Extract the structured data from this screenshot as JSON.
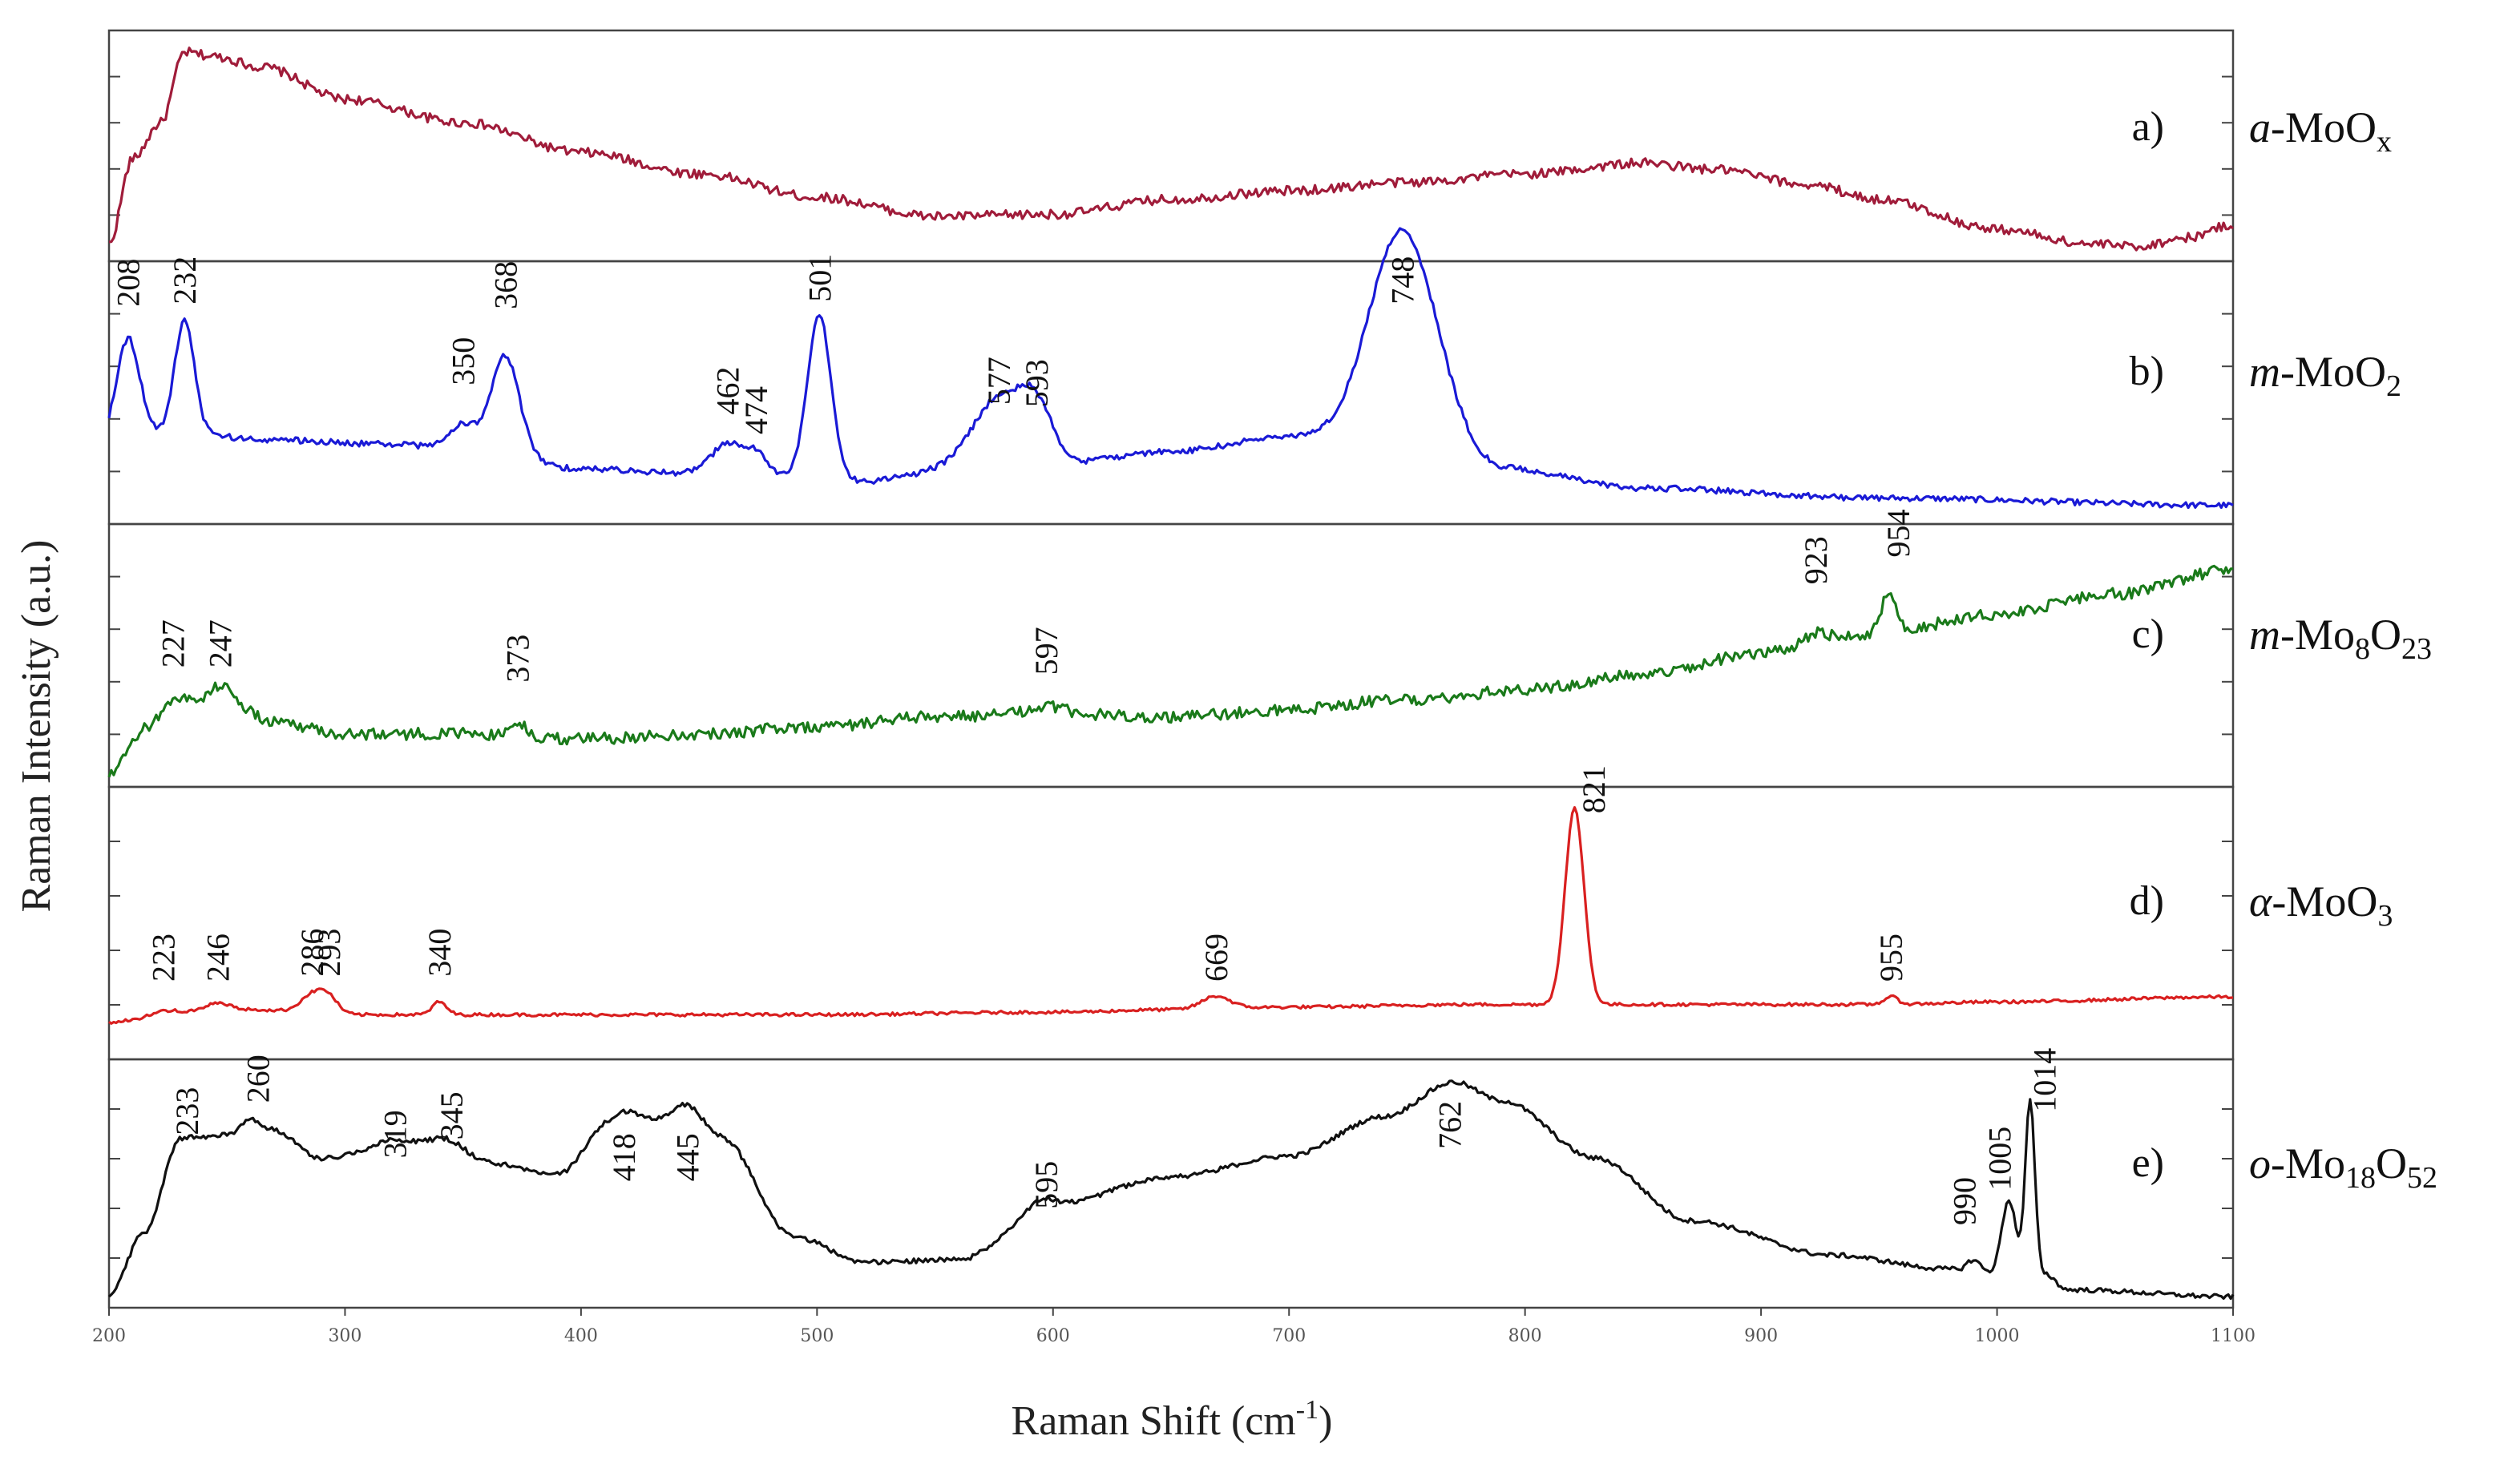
{
  "chart_data": {
    "type": "line",
    "xlabel": "Raman Shift (cm",
    "xlabel_sup": "-1",
    "xlabel_close": ")",
    "ylabel": "Raman Intensity  (a.u.)",
    "xlim": [
      200,
      1100
    ],
    "xticks": [
      200,
      300,
      400,
      500,
      600,
      700,
      800,
      900,
      1000,
      1100
    ],
    "series": [
      {
        "id": "a",
        "letter": "a)",
        "name_parts": [
          {
            "t": "a",
            "i": true
          },
          {
            "t": "-MoO"
          },
          {
            "t": "x",
            "sub": true
          }
        ],
        "color": "#a01c3a",
        "noise": 0.022,
        "base": [
          [
            200,
            0.05
          ],
          [
            210,
            0.45
          ],
          [
            222,
            0.62
          ],
          [
            232,
            0.95
          ],
          [
            245,
            0.93
          ],
          [
            265,
            0.88
          ],
          [
            300,
            0.73
          ],
          [
            350,
            0.62
          ],
          [
            400,
            0.48
          ],
          [
            450,
            0.38
          ],
          [
            500,
            0.27
          ],
          [
            550,
            0.18
          ],
          [
            600,
            0.19
          ],
          [
            650,
            0.26
          ],
          [
            700,
            0.3
          ],
          [
            750,
            0.34
          ],
          [
            800,
            0.38
          ],
          [
            850,
            0.43
          ],
          [
            880,
            0.4
          ],
          [
            920,
            0.33
          ],
          [
            950,
            0.26
          ],
          [
            1000,
            0.12
          ],
          [
            1040,
            0.05
          ],
          [
            1060,
            0.04
          ],
          [
            1080,
            0.08
          ],
          [
            1100,
            0.14
          ]
        ],
        "peaks": [],
        "labels": []
      },
      {
        "id": "b",
        "letter": "b)",
        "name_parts": [
          {
            "t": "m",
            "i": true
          },
          {
            "t": "-MoO"
          },
          {
            "t": "2",
            "sub": true
          }
        ],
        "color": "#1a1ad6",
        "noise": 0.012,
        "base": [
          [
            200,
            0.3
          ],
          [
            230,
            0.36
          ],
          [
            260,
            0.32
          ],
          [
            320,
            0.3
          ],
          [
            350,
            0.28
          ],
          [
            400,
            0.2
          ],
          [
            450,
            0.18
          ],
          [
            480,
            0.17
          ],
          [
            520,
            0.15
          ],
          [
            560,
            0.2
          ],
          [
            600,
            0.22
          ],
          [
            650,
            0.27
          ],
          [
            700,
            0.33
          ],
          [
            760,
            0.3
          ],
          [
            790,
            0.2
          ],
          [
            850,
            0.12
          ],
          [
            950,
            0.08
          ],
          [
            1100,
            0.05
          ]
        ],
        "peaks": [
          [
            208,
            0.42,
            5
          ],
          [
            232,
            0.45,
            4
          ],
          [
            350,
            0.1,
            6
          ],
          [
            368,
            0.4,
            6
          ],
          [
            462,
            0.12,
            7
          ],
          [
            474,
            0.08,
            5
          ],
          [
            501,
            0.66,
            5
          ],
          [
            577,
            0.28,
            11
          ],
          [
            593,
            0.2,
            7
          ],
          [
            748,
            0.87,
            14
          ]
        ],
        "labels": [
          {
            "text": "208",
            "x": 208,
            "y": 0.86
          },
          {
            "text": "232",
            "x": 232,
            "y": 0.87
          },
          {
            "text": "350",
            "x": 350,
            "y": 0.54
          },
          {
            "text": "368",
            "x": 368,
            "y": 0.85
          },
          {
            "text": "462",
            "x": 462,
            "y": 0.42
          },
          {
            "text": "474",
            "x": 474,
            "y": 0.34
          },
          {
            "text": "501",
            "x": 501,
            "y": 0.88
          },
          {
            "text": "577",
            "x": 577,
            "y": 0.46
          },
          {
            "text": "593",
            "x": 593,
            "y": 0.45
          },
          {
            "text": "748",
            "x": 748,
            "y": 0.87
          }
        ]
      },
      {
        "id": "c",
        "letter": "c)",
        "name_parts": [
          {
            "t": "m",
            "i": true
          },
          {
            "t": "-Mo"
          },
          {
            "t": "8",
            "sub": true
          },
          {
            "t": "O"
          },
          {
            "t": "23",
            "sub": true
          }
        ],
        "color": "#1a7a1a",
        "noise": 0.024,
        "base": [
          [
            200,
            0.02
          ],
          [
            215,
            0.2
          ],
          [
            235,
            0.28
          ],
          [
            250,
            0.3
          ],
          [
            270,
            0.24
          ],
          [
            300,
            0.19
          ],
          [
            350,
            0.19
          ],
          [
            400,
            0.17
          ],
          [
            450,
            0.19
          ],
          [
            500,
            0.22
          ],
          [
            550,
            0.26
          ],
          [
            600,
            0.27
          ],
          [
            650,
            0.26
          ],
          [
            700,
            0.29
          ],
          [
            750,
            0.33
          ],
          [
            800,
            0.37
          ],
          [
            850,
            0.43
          ],
          [
            900,
            0.52
          ],
          [
            950,
            0.6
          ],
          [
            1000,
            0.68
          ],
          [
            1050,
            0.76
          ],
          [
            1100,
            0.86
          ]
        ],
        "peaks": [
          [
            227,
            0.08,
            6
          ],
          [
            247,
            0.09,
            6
          ],
          [
            373,
            0.06,
            3
          ],
          [
            597,
            0.03,
            8
          ],
          [
            923,
            0.05,
            5
          ],
          [
            954,
            0.16,
            3
          ]
        ],
        "labels": [
          {
            "text": "227",
            "x": 227,
            "y": 0.46
          },
          {
            "text": "247",
            "x": 247,
            "y": 0.46
          },
          {
            "text": "373",
            "x": 373,
            "y": 0.4
          },
          {
            "text": "597",
            "x": 597,
            "y": 0.43
          },
          {
            "text": "923",
            "x": 923,
            "y": 0.8
          },
          {
            "text": "954",
            "x": 958,
            "y": 0.91
          }
        ]
      },
      {
        "id": "d",
        "letter": "d)",
        "name_parts": [
          {
            "t": "α",
            "i": true
          },
          {
            "t": "-MoO"
          },
          {
            "t": "3",
            "sub": true
          }
        ],
        "color": "#d92020",
        "noise": 0.006,
        "base": [
          [
            200,
            0.12
          ],
          [
            230,
            0.16
          ],
          [
            260,
            0.17
          ],
          [
            300,
            0.15
          ],
          [
            400,
            0.15
          ],
          [
            500,
            0.15
          ],
          [
            600,
            0.16
          ],
          [
            650,
            0.17
          ],
          [
            700,
            0.18
          ],
          [
            780,
            0.19
          ],
          [
            800,
            0.19
          ],
          [
            850,
            0.19
          ],
          [
            900,
            0.19
          ],
          [
            950,
            0.19
          ],
          [
            1000,
            0.2
          ],
          [
            1100,
            0.22
          ]
        ],
        "peaks": [
          [
            223,
            0.01,
            5
          ],
          [
            246,
            0.03,
            5
          ],
          [
            286,
            0.07,
            5
          ],
          [
            293,
            0.06,
            4
          ],
          [
            340,
            0.05,
            3
          ],
          [
            669,
            0.05,
            6
          ],
          [
            821,
            0.77,
            4
          ],
          [
            955,
            0.03,
            3
          ]
        ],
        "labels": [
          {
            "text": "223",
            "x": 223,
            "y": 0.28
          },
          {
            "text": "246",
            "x": 246,
            "y": 0.28
          },
          {
            "text": "286",
            "x": 286,
            "y": 0.3
          },
          {
            "text": "293",
            "x": 293,
            "y": 0.3
          },
          {
            "text": "340",
            "x": 340,
            "y": 0.3
          },
          {
            "text": "669",
            "x": 669,
            "y": 0.28
          },
          {
            "text": "821",
            "x": 829,
            "y": 0.94
          },
          {
            "text": "955",
            "x": 955,
            "y": 0.28
          }
        ]
      },
      {
        "id": "e",
        "letter": "e)",
        "name_parts": [
          {
            "t": "o",
            "i": true
          },
          {
            "t": "-Mo"
          },
          {
            "t": "18",
            "sub": true
          },
          {
            "t": "O"
          },
          {
            "t": "52",
            "sub": true
          }
        ],
        "color": "#111111",
        "noise": 0.01,
        "base": [
          [
            200,
            0.03
          ],
          [
            215,
            0.3
          ],
          [
            230,
            0.68
          ],
          [
            250,
            0.72
          ],
          [
            270,
            0.74
          ],
          [
            290,
            0.62
          ],
          [
            310,
            0.64
          ],
          [
            340,
            0.68
          ],
          [
            360,
            0.6
          ],
          [
            390,
            0.55
          ],
          [
            410,
            0.73
          ],
          [
            430,
            0.76
          ],
          [
            460,
            0.7
          ],
          [
            490,
            0.28
          ],
          [
            520,
            0.17
          ],
          [
            560,
            0.18
          ],
          [
            600,
            0.42
          ],
          [
            650,
            0.54
          ],
          [
            700,
            0.63
          ],
          [
            740,
            0.8
          ],
          [
            770,
            0.95
          ],
          [
            790,
            0.87
          ],
          [
            830,
            0.62
          ],
          [
            870,
            0.35
          ],
          [
            930,
            0.2
          ],
          [
            980,
            0.14
          ],
          [
            990,
            0.12
          ],
          [
            1020,
            0.12
          ],
          [
            1030,
            0.05
          ],
          [
            1100,
            0.02
          ]
        ],
        "peaks": [
          [
            233,
            0.03,
            5
          ],
          [
            260,
            0.06,
            4
          ],
          [
            319,
            0.05,
            8
          ],
          [
            345,
            0.03,
            8
          ],
          [
            418,
            0.08,
            7
          ],
          [
            445,
            0.12,
            7
          ],
          [
            595,
            0.03,
            6
          ],
          [
            990,
            0.06,
            3
          ],
          [
            1005,
            0.32,
            3
          ],
          [
            1014,
            0.75,
            2
          ]
        ],
        "labels": [
          {
            "text": "233",
            "x": 233,
            "y": 0.72
          },
          {
            "text": "260",
            "x": 263,
            "y": 0.86
          },
          {
            "text": "319",
            "x": 321,
            "y": 0.62
          },
          {
            "text": "345",
            "x": 345,
            "y": 0.7
          },
          {
            "text": "418",
            "x": 418,
            "y": 0.52
          },
          {
            "text": "445",
            "x": 445,
            "y": 0.52
          },
          {
            "text": "595",
            "x": 597,
            "y": 0.4
          },
          {
            "text": "762",
            "x": 768,
            "y": 0.66
          },
          {
            "text": "990",
            "x": 986,
            "y": 0.33
          },
          {
            "text": "1005",
            "x": 1001,
            "y": 0.48
          },
          {
            "text": "1014",
            "x": 1020,
            "y": 0.82
          }
        ]
      }
    ]
  }
}
